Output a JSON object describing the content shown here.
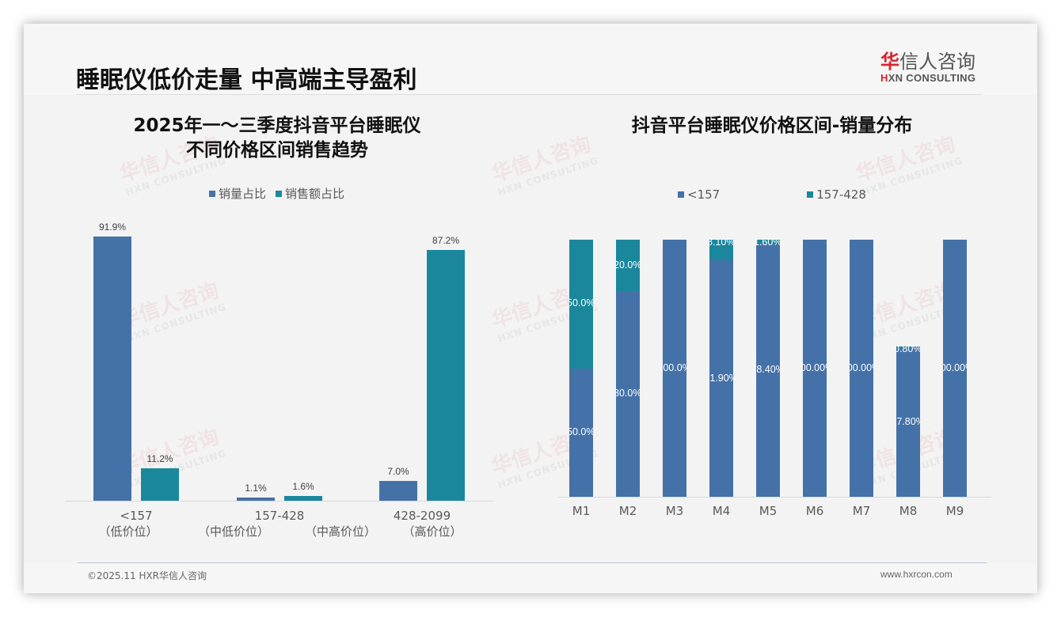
{
  "header": {
    "title": "睡眠仪低价走量 中高端主导盈利",
    "logo_cn_first": "华",
    "logo_cn_rest": "信人咨询",
    "logo_en_first": "H",
    "logo_en_rest": "XN CONSULTING"
  },
  "watermark": {
    "cn": "华信人咨询",
    "en": "HXN CONSULTING"
  },
  "colors": {
    "series_blue": "#4472a8",
    "series_teal": "#1b879c",
    "brand_red": "#d9232e"
  },
  "left_chart": {
    "title_line1": "2025年一～三季度抖音平台睡眠仪",
    "title_line2": "不同价格区间销售趋势",
    "legend": [
      "销量占比",
      "销售额占比"
    ],
    "categories": [
      {
        "label": "<157",
        "sub": [
          "（低价位）"
        ]
      },
      {
        "label": "157-428",
        "sub": [
          "（中低价位）",
          "（中高价位）"
        ]
      },
      {
        "label": "428-2099",
        "sub": [
          "（高价位）"
        ]
      }
    ],
    "value_labels": {
      "volume": [
        "91.9%",
        "1.1%",
        "7.0%"
      ],
      "sales": [
        "11.2%",
        "1.6%",
        "87.2%"
      ]
    }
  },
  "right_chart": {
    "title": "抖音平台睡眠仪价格区间-销量分布",
    "legend": [
      "<157",
      "157-428"
    ],
    "categories": [
      "M1",
      "M2",
      "M3",
      "M4",
      "M5",
      "M6",
      "M7",
      "M8",
      "M9"
    ],
    "labels_low": [
      "50.0%",
      "80.0%",
      "100.0%",
      "91.90%",
      "98.40%",
      "100.00%",
      "100.00%",
      "57.80%",
      "100.00%"
    ],
    "labels_mid": [
      "50.0%",
      "20.0%",
      "",
      "8.10%",
      "1.60%",
      "",
      "",
      "0.80%",
      ""
    ]
  },
  "chart_data": [
    {
      "type": "bar",
      "title": "2025年一～三季度抖音平台睡眠仪不同价格区间销售趋势",
      "categories": [
        "<157（低价位）",
        "157-428（中低价位/中高价位）",
        "428-2099（高价位）"
      ],
      "series": [
        {
          "name": "销量占比",
          "values": [
            91.9,
            1.1,
            7.0
          ]
        },
        {
          "name": "销售额占比",
          "values": [
            11.2,
            1.6,
            87.2
          ]
        }
      ],
      "xlabel": "",
      "ylabel": "",
      "ylim": [
        0,
        100
      ],
      "grid": false,
      "legend_position": "top",
      "unit": "%"
    },
    {
      "type": "bar",
      "stacked": true,
      "title": "抖音平台睡眠仪价格区间-销量分布",
      "categories": [
        "M1",
        "M2",
        "M3",
        "M4",
        "M5",
        "M6",
        "M7",
        "M8",
        "M9"
      ],
      "series": [
        {
          "name": "<157",
          "values": [
            50.0,
            80.0,
            100.0,
            91.9,
            98.4,
            100.0,
            100.0,
            57.8,
            100.0
          ]
        },
        {
          "name": "157-428",
          "values": [
            50.0,
            20.0,
            0,
            8.1,
            1.6,
            0,
            0,
            0.8,
            0
          ]
        }
      ],
      "xlabel": "",
      "ylabel": "",
      "ylim": [
        0,
        100
      ],
      "grid": false,
      "legend_position": "top",
      "unit": "%"
    }
  ],
  "footer": {
    "copyright": "©2025.11 HXR华信人咨询",
    "website": "www.hxrcon.com"
  }
}
